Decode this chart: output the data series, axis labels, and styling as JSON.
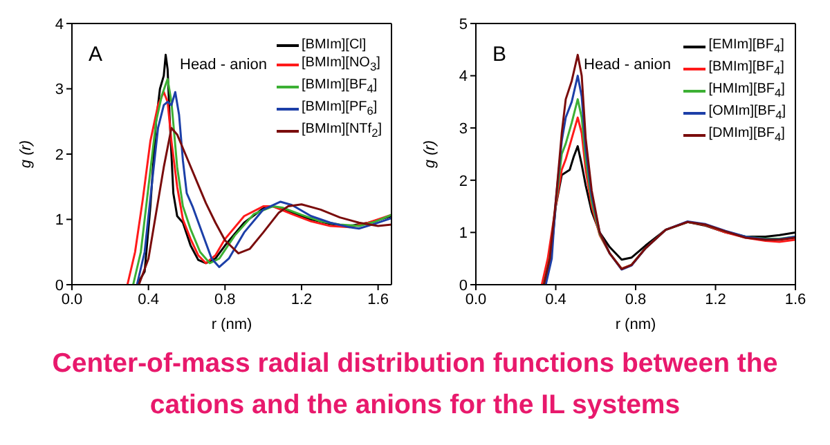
{
  "chart_data": [
    {
      "type": "line",
      "xlabel": "r (nm)",
      "ylabel": "g (r)",
      "xlim": [
        0,
        1.67
      ],
      "ylim": [
        0,
        4
      ],
      "xticks": [
        {
          "value": 0,
          "label": "0.0"
        },
        0.4,
        0.8,
        1.2,
        1.6
      ],
      "yticks": [
        0,
        1,
        2,
        3,
        4
      ],
      "legend": "top right",
      "marker": "none",
      "line_style": "solid",
      "annotations": [
        "A",
        "Head - anion"
      ],
      "series": [
        {
          "name": "[BMIm][Cl]",
          "color": "#000000",
          "x": [
            0.34,
            0.38,
            0.41,
            0.44,
            0.46,
            0.48,
            0.49,
            0.5,
            0.51,
            0.53,
            0.55,
            0.58,
            0.62,
            0.66,
            0.7,
            0.75,
            0.8,
            0.9,
            1.0,
            1.05,
            1.15,
            1.25,
            1.35,
            1.45,
            1.55,
            1.67
          ],
          "values": [
            0,
            0.2,
            1.2,
            2.5,
            3.0,
            3.2,
            3.52,
            3.3,
            2.6,
            1.4,
            1.05,
            0.95,
            0.6,
            0.38,
            0.33,
            0.4,
            0.6,
            0.95,
            1.17,
            1.2,
            1.1,
            1.0,
            0.93,
            0.9,
            0.95,
            1.05
          ]
        },
        {
          "name": "[BMIm][NO$_{3}$]",
          "color": "#ff1a1a",
          "x": [
            0.29,
            0.33,
            0.37,
            0.41,
            0.45,
            0.48,
            0.5,
            0.52,
            0.55,
            0.58,
            0.62,
            0.66,
            0.7,
            0.75,
            0.8,
            0.9,
            1.0,
            1.05,
            1.15,
            1.25,
            1.35,
            1.45,
            1.55,
            1.67
          ],
          "values": [
            0,
            0.5,
            1.3,
            2.2,
            2.75,
            2.95,
            2.8,
            2.2,
            1.5,
            1.0,
            0.7,
            0.45,
            0.33,
            0.45,
            0.7,
            1.05,
            1.2,
            1.2,
            1.08,
            0.97,
            0.9,
            0.88,
            0.95,
            1.07
          ]
        },
        {
          "name": "[BMIm][BF$_{4}$]",
          "color": "#3cb034",
          "x": [
            0.32,
            0.36,
            0.4,
            0.44,
            0.47,
            0.5,
            0.52,
            0.55,
            0.58,
            0.62,
            0.67,
            0.72,
            0.77,
            0.85,
            0.95,
            1.05,
            1.1,
            1.2,
            1.3,
            1.4,
            1.5,
            1.58,
            1.67
          ],
          "values": [
            0,
            0.5,
            1.5,
            2.5,
            2.9,
            3.15,
            2.8,
            1.8,
            1.2,
            0.85,
            0.5,
            0.33,
            0.4,
            0.75,
            1.08,
            1.2,
            1.18,
            1.07,
            0.97,
            0.92,
            0.9,
            0.96,
            1.07
          ]
        },
        {
          "name": "[BMIm][PF$_{6}$]",
          "color": "#1c3fa8",
          "x": [
            0.34,
            0.38,
            0.42,
            0.45,
            0.48,
            0.5,
            0.52,
            0.54,
            0.56,
            0.58,
            0.6,
            0.63,
            0.68,
            0.73,
            0.77,
            0.82,
            0.9,
            1.0,
            1.09,
            1.15,
            1.25,
            1.35,
            1.45,
            1.5,
            1.58,
            1.67
          ],
          "values": [
            0,
            0.5,
            1.6,
            2.4,
            2.75,
            2.8,
            2.75,
            2.95,
            2.6,
            1.9,
            1.4,
            1.2,
            0.8,
            0.4,
            0.27,
            0.4,
            0.8,
            1.15,
            1.27,
            1.22,
            1.05,
            0.95,
            0.88,
            0.86,
            0.93,
            1.02
          ]
        },
        {
          "name": "[BMIm][NTf$_{2}$]",
          "color": "#7a0c0c",
          "x": [
            0.35,
            0.4,
            0.44,
            0.48,
            0.52,
            0.55,
            0.6,
            0.65,
            0.7,
            0.75,
            0.8,
            0.87,
            0.93,
            1.0,
            1.08,
            1.13,
            1.2,
            1.3,
            1.4,
            1.5,
            1.6,
            1.67
          ],
          "values": [
            0,
            0.4,
            1.1,
            1.8,
            2.4,
            2.3,
            1.95,
            1.6,
            1.25,
            0.95,
            0.68,
            0.48,
            0.55,
            0.8,
            1.1,
            1.2,
            1.23,
            1.15,
            1.03,
            0.95,
            0.9,
            0.92
          ]
        }
      ]
    },
    {
      "type": "line",
      "xlabel": "r (nm)",
      "ylabel": "g (r)",
      "xlim": [
        0,
        1.6
      ],
      "ylim": [
        0,
        5
      ],
      "xticks": [
        {
          "value": 0,
          "label": "0.0"
        },
        0.4,
        0.8,
        1.2,
        1.6
      ],
      "yticks": [
        0,
        1,
        2,
        3,
        4,
        5
      ],
      "legend": "top right",
      "marker": "none",
      "line_style": "solid",
      "annotations": [
        "B",
        "Head - anion",
        "Center-of-mass radial distribution functions between the cations and the anions for the IL systems"
      ],
      "series": [
        {
          "name": "[EMIm][BF$_{4}$]",
          "color": "#000000",
          "x": [
            0.345,
            0.375,
            0.4,
            0.43,
            0.45,
            0.47,
            0.49,
            0.51,
            0.53,
            0.55,
            0.58,
            0.62,
            0.67,
            0.73,
            0.78,
            0.85,
            0.95,
            1.06,
            1.15,
            1.25,
            1.35,
            1.45,
            1.52,
            1.6
          ],
          "values": [
            0,
            0.5,
            1.5,
            2.1,
            2.15,
            2.2,
            2.45,
            2.65,
            2.3,
            1.9,
            1.4,
            1.0,
            0.72,
            0.48,
            0.52,
            0.75,
            1.05,
            1.2,
            1.13,
            1.0,
            0.92,
            0.92,
            0.95,
            1.0
          ]
        },
        {
          "name": "[BMIm][BF$_{4}$]",
          "color": "#ff1a1a",
          "x": [
            0.33,
            0.36,
            0.4,
            0.43,
            0.45,
            0.48,
            0.51,
            0.53,
            0.55,
            0.58,
            0.62,
            0.67,
            0.73,
            0.78,
            0.85,
            0.95,
            1.06,
            1.15,
            1.25,
            1.35,
            1.45,
            1.52,
            1.6
          ],
          "values": [
            0,
            0.5,
            1.5,
            2.2,
            2.4,
            2.8,
            3.2,
            2.9,
            2.2,
            1.5,
            0.95,
            0.6,
            0.31,
            0.38,
            0.7,
            1.05,
            1.2,
            1.14,
            1.0,
            0.9,
            0.84,
            0.82,
            0.86
          ]
        },
        {
          "name": "[HMIm][BF$_{4}$]",
          "color": "#3cb034",
          "x": [
            0.34,
            0.37,
            0.4,
            0.43,
            0.45,
            0.48,
            0.51,
            0.53,
            0.55,
            0.58,
            0.62,
            0.67,
            0.73,
            0.78,
            0.85,
            0.95,
            1.06,
            1.15,
            1.25,
            1.35,
            1.45,
            1.52,
            1.6
          ],
          "values": [
            0,
            0.5,
            1.55,
            2.5,
            2.7,
            3.1,
            3.55,
            3.2,
            2.4,
            1.6,
            0.97,
            0.6,
            0.3,
            0.38,
            0.7,
            1.05,
            1.2,
            1.15,
            1.02,
            0.92,
            0.88,
            0.88,
            0.92
          ]
        },
        {
          "name": "[OMIm][BF$_{4}$]",
          "color": "#1c3fa8",
          "x": [
            0.35,
            0.38,
            0.4,
            0.43,
            0.45,
            0.48,
            0.51,
            0.53,
            0.55,
            0.58,
            0.62,
            0.67,
            0.73,
            0.78,
            0.85,
            0.95,
            1.06,
            1.15,
            1.25,
            1.35,
            1.45,
            1.52,
            1.6
          ],
          "values": [
            0,
            0.5,
            1.6,
            2.75,
            3.2,
            3.5,
            4.0,
            3.6,
            2.6,
            1.7,
            1.0,
            0.6,
            0.29,
            0.37,
            0.7,
            1.05,
            1.21,
            1.16,
            1.03,
            0.92,
            0.87,
            0.87,
            0.92
          ]
        },
        {
          "name": "[DMIm][BF$_{4}$]",
          "color": "#7a0c0c",
          "x": [
            0.34,
            0.37,
            0.4,
            0.43,
            0.45,
            0.48,
            0.51,
            0.53,
            0.55,
            0.58,
            0.62,
            0.67,
            0.73,
            0.78,
            0.85,
            0.95,
            1.06,
            1.15,
            1.25,
            1.35,
            1.45,
            1.52,
            1.6
          ],
          "values": [
            0,
            0.5,
            1.6,
            2.9,
            3.55,
            3.9,
            4.4,
            4.0,
            2.8,
            1.8,
            1.0,
            0.6,
            0.3,
            0.38,
            0.7,
            1.05,
            1.2,
            1.15,
            1.02,
            0.9,
            0.86,
            0.86,
            0.9
          ]
        }
      ]
    }
  ]
}
